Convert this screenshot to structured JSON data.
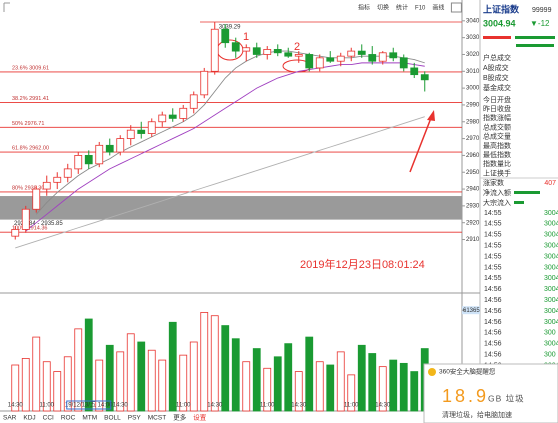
{
  "toolbar": [
    "指标",
    "切换",
    "统计",
    "F10",
    "画线"
  ],
  "chart_data": {
    "type": "candlestick",
    "categories": [
      "14:30",
      null,
      null,
      "11:00",
      null,
      null,
      null,
      "19/12/13/五 14:00",
      null,
      null,
      "14:30",
      null,
      null,
      null,
      null,
      null,
      "11:00",
      null,
      null,
      "14:30",
      null,
      null,
      null,
      null,
      "11:00",
      null,
      null,
      "14:30",
      null,
      null,
      null,
      null,
      "11:00",
      null,
      null,
      "14:30",
      null,
      null,
      null,
      null
    ],
    "open": [
      2912,
      2916,
      2928,
      2940,
      2944,
      2947,
      2952,
      2960,
      2955,
      2966,
      2962,
      2970,
      2975,
      2973,
      2980,
      2984,
      2982,
      2988,
      2996,
      3010,
      3035,
      3027,
      3022,
      3024,
      3020,
      3023,
      3021,
      3019,
      3020,
      3012,
      3018,
      3016,
      3019,
      3022,
      3020,
      3016,
      3021,
      3018,
      3012,
      3008
    ],
    "high": [
      2918,
      2930,
      2942,
      2948,
      2950,
      2955,
      2962,
      2963,
      2968,
      2970,
      2972,
      2978,
      2980,
      2982,
      2986,
      2988,
      2990,
      2998,
      3012,
      3039.29,
      3038,
      3030,
      3026,
      3027,
      3025,
      3026,
      3024,
      3022,
      3021,
      3020,
      3022,
      3021,
      3024,
      3026,
      3025,
      3022,
      3024,
      3020,
      3015,
      3010
    ],
    "low": [
      2910,
      2914,
      2926,
      2936,
      2940,
      2944,
      2949,
      2952,
      2953,
      2960,
      2960,
      2966,
      2970,
      2971,
      2977,
      2980,
      2980,
      2985,
      2994,
      3008,
      3024,
      3018,
      3016,
      3018,
      3017,
      3019,
      3018,
      3015,
      3010,
      3010,
      3015,
      3013,
      3016,
      3018,
      3014,
      3014,
      3016,
      3010,
      3006,
      2998
    ],
    "close": [
      2916,
      2928,
      2940,
      2944,
      2947,
      2952,
      2960,
      2955,
      2966,
      2962,
      2970,
      2975,
      2973,
      2980,
      2984,
      2982,
      2988,
      2996,
      3010,
      3035,
      3027,
      3022,
      3024,
      3020,
      3023,
      3021,
      3019,
      3020,
      3012,
      3018,
      3016,
      3019,
      3022,
      3020,
      3016,
      3021,
      3018,
      3012,
      3008,
      3004.94
    ],
    "up_color": "#e8322e",
    "down_color": "#1a9a32",
    "ylim": [
      2880,
      3050
    ],
    "yticks": [
      3040,
      3030,
      3020,
      3010,
      3000,
      2990,
      2980,
      2970,
      2960,
      2950,
      2940,
      2930,
      2920,
      2910
    ],
    "lines": [
      {
        "color": "#8a8a8a",
        "values": [
          null,
          null,
          2925,
          2932,
          2938,
          2943,
          2948,
          2952,
          2955,
          2958,
          2962,
          2965,
          2968,
          2971,
          2974,
          2977,
          2980,
          2984,
          2990,
          2998,
          3006,
          3012,
          3016,
          3019,
          3021,
          3022,
          3022,
          3021,
          3020,
          3019,
          3018,
          3018,
          3018,
          3019,
          3019,
          3019,
          3019,
          3018,
          3017,
          3015
        ]
      },
      {
        "color": "#a040c0",
        "values": [
          null,
          2915,
          2920,
          2925,
          2930,
          2935,
          2940,
          2944,
          2948,
          2952,
          2955,
          2958,
          2961,
          2964,
          2967,
          2970,
          2973,
          2976,
          2980,
          2984,
          2988,
          2992,
          2996,
          3000,
          3003,
          3006,
          3008,
          3010,
          3011,
          3012,
          3013,
          3014,
          3014,
          3015,
          3015,
          3015,
          3015,
          3015,
          3014,
          3013
        ]
      },
      {
        "color": "#b0b0b0",
        "values": [
          2905,
          2907,
          2909,
          2911,
          2913,
          2915,
          2917,
          2919,
          2921,
          2923,
          2925,
          2927,
          2929,
          2931,
          2933,
          2935,
          2937,
          2939,
          2941,
          2943,
          2945,
          2947,
          2949,
          2951,
          2953,
          2955,
          2957,
          2959,
          2961,
          2963,
          2965,
          2967,
          2969,
          2971,
          2973,
          2975,
          2977,
          2979,
          2981,
          2983
        ]
      }
    ],
    "fib_levels": [
      {
        "value": 3009.61,
        "label": "23.6% 3009.61"
      },
      {
        "value": 2991.41,
        "label": "38.2% 2991.41"
      },
      {
        "value": 2976.71,
        "label": "50% 2976.71"
      },
      {
        "value": 2962.0,
        "label": "61.8% 2962.00"
      },
      {
        "value": 2938.3,
        "label": "80% 2938.30"
      },
      {
        "value": 2914.36,
        "label": "100% 2914.36"
      }
    ],
    "zone": {
      "low": 2921.84,
      "high": 2935.85,
      "label": "2921.84 - 2935.85"
    },
    "volume": {
      "values": [
        28000,
        32000,
        45000,
        30000,
        24000,
        33000,
        50000,
        56000,
        31000,
        40000,
        36000,
        47000,
        42000,
        37000,
        31000,
        54000,
        34000,
        42000,
        60000,
        58000,
        52000,
        44000,
        30000,
        38000,
        26000,
        33000,
        41000,
        24000,
        45000,
        30000,
        28000,
        36000,
        22000,
        40000,
        35000,
        27000,
        31000,
        29000,
        24000,
        38000
      ],
      "ylim": [
        0,
        70000
      ],
      "yticks": [
        61365
      ]
    },
    "annotations": {
      "date": "2019年12月23日08:01:24",
      "markers": [
        "1",
        "2"
      ]
    },
    "tabs": [
      "SAR",
      "KDJ",
      "CCI",
      "ROC",
      "MTM",
      "BOLL",
      "PSY",
      "MCST",
      "更多",
      "设置"
    ]
  },
  "side_panel": {
    "title": "上证指数",
    "code": "99999",
    "price": "3004.94",
    "change": "▼-12",
    "rows_a": [
      "户总成交",
      "A股成交",
      "B股成交",
      "基金成交"
    ],
    "rows_b": [
      "今日开盘",
      "昨日收盘",
      "指数涨幅",
      "总成交额",
      "总成交量",
      "最高指数",
      "最低指数",
      "指数量比",
      "上证换手"
    ],
    "advancers": {
      "label": "涨家数",
      "value": "407"
    },
    "flows": [
      "净流入额",
      "大宗流入"
    ],
    "ticks": [
      [
        "14:55",
        "3004"
      ],
      [
        "14:55",
        "3004"
      ],
      [
        "14:55",
        "3004"
      ],
      [
        "14:55",
        "3004"
      ],
      [
        "14:55",
        "3004"
      ],
      [
        "14:55",
        "3004"
      ],
      [
        "14:55",
        "3004"
      ],
      [
        "14:56",
        "3004"
      ],
      [
        "14:56",
        "3004"
      ],
      [
        "14:56",
        "3004"
      ],
      [
        "14:56",
        "3004"
      ],
      [
        "14:56",
        "300"
      ],
      [
        "14:56",
        "3004"
      ],
      [
        "14:56",
        "300"
      ],
      [
        "14:56",
        "3004"
      ],
      [
        "14:56",
        "3004"
      ],
      [
        "14:56",
        "3004"
      ],
      [
        "14:56",
        "300"
      ]
    ]
  },
  "popup": {
    "title": "360安全大脑提醒您",
    "size": "18.9",
    "unit": "GB 垃圾",
    "text": "清理垃圾，给电脑加速"
  }
}
